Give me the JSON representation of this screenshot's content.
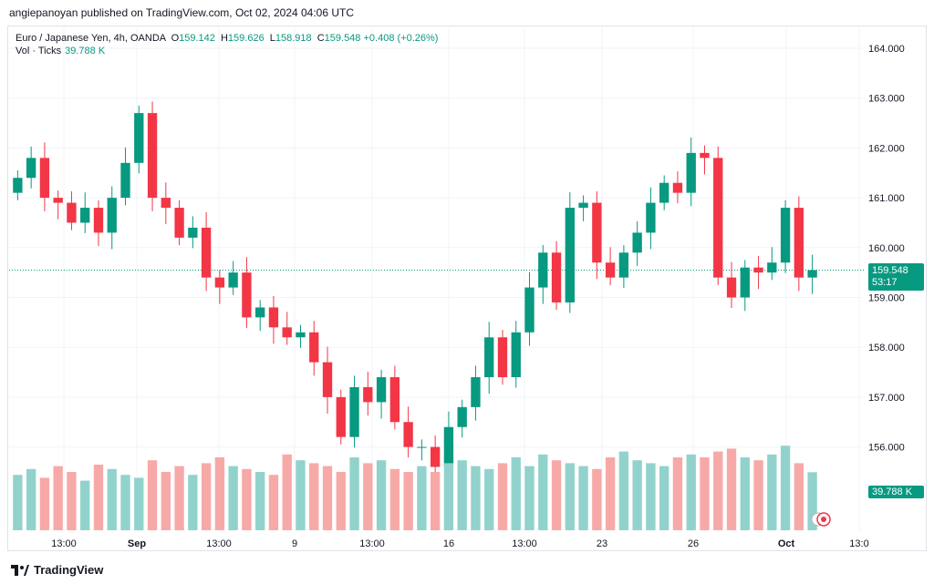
{
  "publisher": "angiepanoyan published on TradingView.com, Oct 02, 2024 04:06 UTC",
  "legend": {
    "symbol": "Euro / Japanese Yen, 4h, OANDA",
    "open_k": "O",
    "open": "159.142",
    "high_k": "H",
    "high": "159.626",
    "low_k": "L",
    "low": "158.918",
    "close_k": "C",
    "close": "159.548",
    "change": "+0.408 (+0.26%)"
  },
  "volume_legend": {
    "label": "Vol · Ticks",
    "value": "39.788 K"
  },
  "price_tag": {
    "price": "159.548",
    "countdown": "53:17"
  },
  "volume_tag": "39.788 K",
  "footer": "TradingView",
  "colors": {
    "up": "#089981",
    "down": "#f23645",
    "up_vol": "#92d2cc",
    "down_vol": "#f7a9a7",
    "grid": "#f0f3fa"
  },
  "chart_data": {
    "type": "candlestick",
    "y_ticks": [
      "164.000",
      "163.000",
      "162.000",
      "161.000",
      "160.000",
      "159.000",
      "158.000",
      "157.000",
      "156.000"
    ],
    "ylim": [
      155.5,
      164.35
    ],
    "x_ticks": [
      "13:00",
      "Sep",
      "13:00",
      "9",
      "13:00",
      "16",
      "13:00",
      "23",
      "26",
      "Oct",
      "13:0"
    ],
    "close_series": [
      161.4,
      161.8,
      161.0,
      160.9,
      160.5,
      160.8,
      160.3,
      161.0,
      161.7,
      162.7,
      161.0,
      160.8,
      160.2,
      160.4,
      159.4,
      159.2,
      159.5,
      158.6,
      158.8,
      158.4,
      158.2,
      158.3,
      157.7,
      157.0,
      156.2,
      157.2,
      156.9,
      157.4,
      156.5,
      156.0,
      156.0,
      155.6,
      156.4,
      156.8,
      157.4,
      158.2,
      157.4,
      158.3,
      159.2,
      159.9,
      158.9,
      160.8,
      160.9,
      159.7,
      159.4,
      159.9,
      160.3,
      160.9,
      161.3,
      161.1,
      161.9,
      161.8,
      159.4,
      159.0,
      159.6,
      159.5,
      159.7,
      160.8,
      159.4,
      159.548
    ],
    "volume_series": [
      38,
      42,
      36,
      44,
      40,
      34,
      45,
      42,
      38,
      36,
      48,
      40,
      44,
      38,
      46,
      50,
      44,
      42,
      40,
      38,
      52,
      48,
      46,
      44,
      40,
      50,
      46,
      48,
      42,
      40,
      44,
      40,
      46,
      48,
      44,
      42,
      46,
      50,
      44,
      52,
      48,
      46,
      44,
      42,
      50,
      54,
      48,
      46,
      44,
      50,
      52,
      50,
      54,
      56,
      50,
      48,
      52,
      58,
      46,
      39.8
    ]
  }
}
